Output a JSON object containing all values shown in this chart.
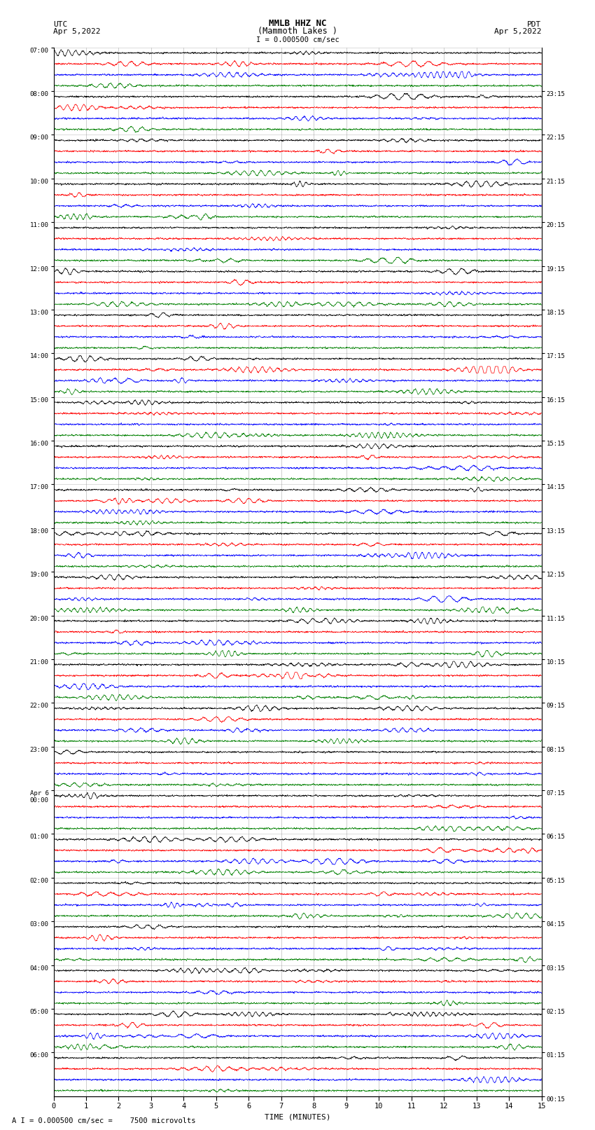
{
  "title_line1": "MMLB HHZ NC",
  "title_line2": "(Mammoth Lakes )",
  "title_line3": "I = 0.000500 cm/sec",
  "left_header_1": "UTC",
  "left_header_2": "Apr 5,2022",
  "right_header_1": "PDT",
  "right_header_2": "Apr 5,2022",
  "bottom_label": "TIME (MINUTES)",
  "bottom_note": "A I = 0.000500 cm/sec =    7500 microvolts",
  "x_min": 0,
  "x_max": 15,
  "left_labels": [
    "07:00",
    "08:00",
    "09:00",
    "10:00",
    "11:00",
    "12:00",
    "13:00",
    "14:00",
    "15:00",
    "16:00",
    "17:00",
    "18:00",
    "19:00",
    "20:00",
    "21:00",
    "22:00",
    "23:00",
    "Apr 6\n00:00",
    "01:00",
    "02:00",
    "03:00",
    "04:00",
    "05:00",
    "06:00"
  ],
  "right_labels": [
    "00:15",
    "01:15",
    "02:15",
    "03:15",
    "04:15",
    "05:15",
    "06:15",
    "07:15",
    "08:15",
    "09:15",
    "10:15",
    "11:15",
    "12:15",
    "13:15",
    "14:15",
    "15:15",
    "16:15",
    "17:15",
    "18:15",
    "19:15",
    "20:15",
    "21:15",
    "22:15",
    "23:15"
  ],
  "n_hours": 24,
  "n_traces_per_hour": 4,
  "colors": [
    "black",
    "red",
    "blue",
    "green"
  ],
  "trace_amplitude": 0.12,
  "noise_amplitude": 0.06,
  "background_color": "white"
}
